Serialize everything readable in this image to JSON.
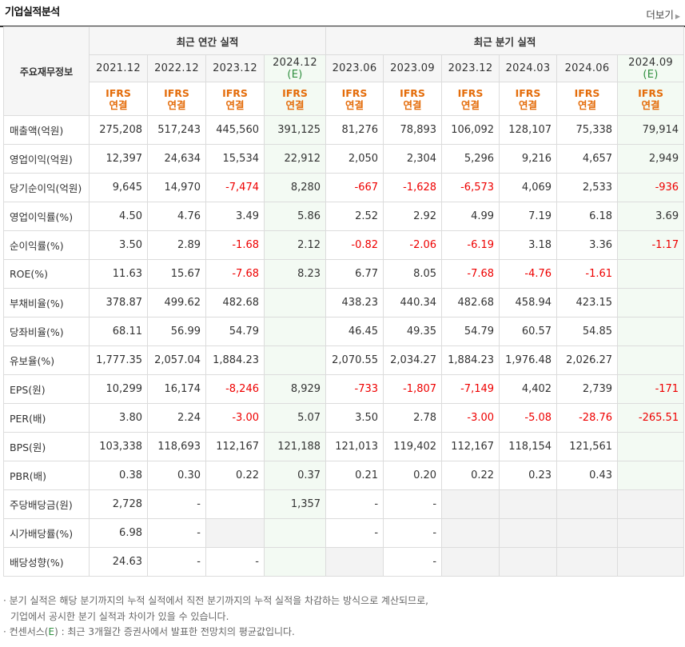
{
  "header": {
    "title": "기업실적분석",
    "more_label": "더보기"
  },
  "table": {
    "corner_label": "주요재무정보",
    "group_annual": "최근 연간 실적",
    "group_quarter": "최근 분기 실적",
    "periods": [
      {
        "label": "2021.12",
        "sub": "",
        "std1": "IFRS",
        "std2": "연결",
        "est": false
      },
      {
        "label": "2022.12",
        "sub": "",
        "std1": "IFRS",
        "std2": "연결",
        "est": false
      },
      {
        "label": "2023.12",
        "sub": "",
        "std1": "IFRS",
        "std2": "연결",
        "est": false
      },
      {
        "label": "2024.12",
        "sub": "(E)",
        "std1": "IFRS",
        "std2": "연결",
        "est": true
      },
      {
        "label": "2023.06",
        "sub": "",
        "std1": "IFRS",
        "std2": "연결",
        "est": false
      },
      {
        "label": "2023.09",
        "sub": "",
        "std1": "IFRS",
        "std2": "연결",
        "est": false
      },
      {
        "label": "2023.12",
        "sub": "",
        "std1": "IFRS",
        "std2": "연결",
        "est": false
      },
      {
        "label": "2024.03",
        "sub": "",
        "std1": "IFRS",
        "std2": "연결",
        "est": false
      },
      {
        "label": "2024.06",
        "sub": "",
        "std1": "IFRS",
        "std2": "연결",
        "est": false
      },
      {
        "label": "2024.09",
        "sub": "(E)",
        "std1": "IFRS",
        "std2": "연결",
        "est": true
      }
    ],
    "rows": [
      {
        "label": "매출액(억원)",
        "group_start": true,
        "values": [
          "275,208",
          "517,243",
          "445,560",
          "391,125",
          "81,276",
          "78,893",
          "106,092",
          "128,107",
          "75,338",
          "79,914"
        ]
      },
      {
        "label": "영업이익(억원)",
        "group_start": false,
        "values": [
          "12,397",
          "24,634",
          "15,534",
          "22,912",
          "2,050",
          "2,304",
          "5,296",
          "9,216",
          "4,657",
          "2,949"
        ]
      },
      {
        "label": "당기순이익(억원)",
        "group_start": false,
        "values": [
          "9,645",
          "14,970",
          "-7,474",
          "8,280",
          "-667",
          "-1,628",
          "-6,573",
          "4,069",
          "2,533",
          "-936"
        ]
      },
      {
        "label": "영업이익률(%)",
        "group_start": true,
        "values": [
          "4.50",
          "4.76",
          "3.49",
          "5.86",
          "2.52",
          "2.92",
          "4.99",
          "7.19",
          "6.18",
          "3.69"
        ]
      },
      {
        "label": "순이익률(%)",
        "group_start": false,
        "values": [
          "3.50",
          "2.89",
          "-1.68",
          "2.12",
          "-0.82",
          "-2.06",
          "-6.19",
          "3.18",
          "3.36",
          "-1.17"
        ]
      },
      {
        "label": "ROE(%)",
        "group_start": false,
        "values": [
          "11.63",
          "15.67",
          "-7.68",
          "8.23",
          "6.77",
          "8.05",
          "-7.68",
          "-4.76",
          "-1.61",
          ""
        ]
      },
      {
        "label": "부채비율(%)",
        "group_start": true,
        "values": [
          "378.87",
          "499.62",
          "482.68",
          "",
          "438.23",
          "440.34",
          "482.68",
          "458.94",
          "423.15",
          ""
        ]
      },
      {
        "label": "당좌비율(%)",
        "group_start": false,
        "values": [
          "68.11",
          "56.99",
          "54.79",
          "",
          "46.45",
          "49.35",
          "54.79",
          "60.57",
          "54.85",
          ""
        ]
      },
      {
        "label": "유보율(%)",
        "group_start": false,
        "values": [
          "1,777.35",
          "2,057.04",
          "1,884.23",
          "",
          "2,070.55",
          "2,034.27",
          "1,884.23",
          "1,976.48",
          "2,026.27",
          ""
        ]
      },
      {
        "label": "EPS(원)",
        "group_start": true,
        "values": [
          "10,299",
          "16,174",
          "-8,246",
          "8,929",
          "-733",
          "-1,807",
          "-7,149",
          "4,402",
          "2,739",
          "-171"
        ]
      },
      {
        "label": "PER(배)",
        "group_start": false,
        "values": [
          "3.80",
          "2.24",
          "-3.00",
          "5.07",
          "3.50",
          "2.78",
          "-3.00",
          "-5.08",
          "-28.76",
          "-265.51"
        ]
      },
      {
        "label": "BPS(원)",
        "group_start": false,
        "values": [
          "103,338",
          "118,693",
          "112,167",
          "121,188",
          "121,013",
          "119,402",
          "112,167",
          "118,154",
          "121,561",
          ""
        ]
      },
      {
        "label": "PBR(배)",
        "group_start": false,
        "values": [
          "0.38",
          "0.30",
          "0.22",
          "0.37",
          "0.21",
          "0.20",
          "0.22",
          "0.23",
          "0.43",
          ""
        ]
      },
      {
        "label": "주당배당금(원)",
        "group_start": true,
        "values": [
          "2,728",
          "-",
          "",
          "1,357",
          "-",
          "-",
          null,
          null,
          null,
          null
        ]
      },
      {
        "label": "시가배당률(%)",
        "group_start": false,
        "values": [
          "6.98",
          "-",
          null,
          "",
          "-",
          "-",
          null,
          null,
          null,
          null
        ]
      },
      {
        "label": "배당성향(%)",
        "group_start": false,
        "values": [
          "24.63",
          "-",
          "-",
          "",
          null,
          "-",
          null,
          null,
          null,
          null
        ]
      }
    ]
  },
  "notes": {
    "line1": "분기 실적은 해당 분기까지의 누적 실적에서 직전 분기까지의 누적 실적을 차감하는 방식으로 계산되므로,",
    "line2": "기업에서 공시한 분기 실적과 차이가 있을 수 있습니다.",
    "line3_prefix": "컨센서스(",
    "line3_e": "E",
    "line3_suffix": ") : 최근 3개월간 증권사에서 발표한 전망치의 평균값입니다."
  },
  "colors": {
    "negative": "#ee0000",
    "ifrs": "#e46c0a",
    "estimate_bg": "#f3faf3",
    "estimate_text": "#2f8f3f",
    "header_bg": "#f6f6f6"
  }
}
